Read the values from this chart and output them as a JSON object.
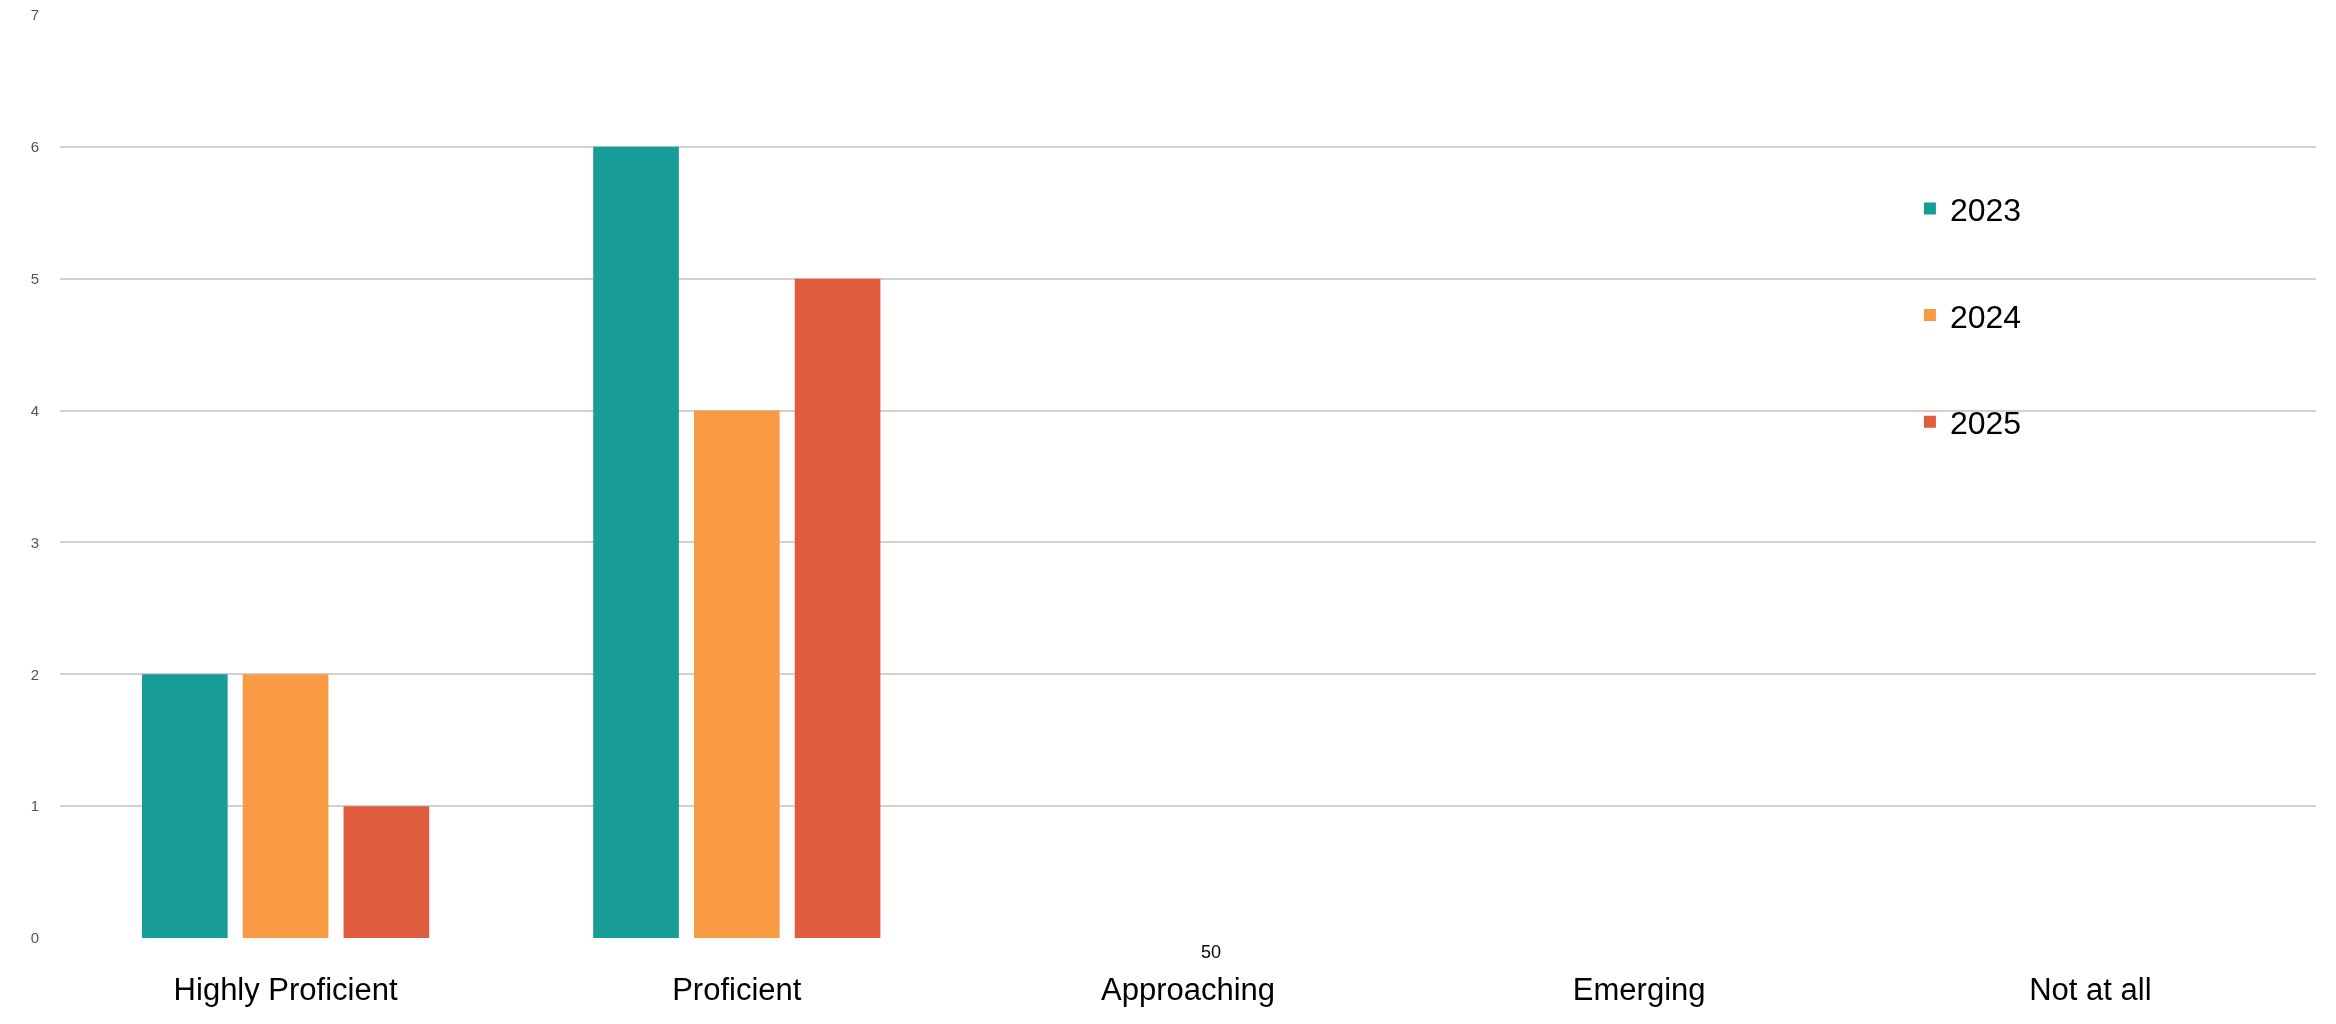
{
  "chart_data": {
    "type": "bar",
    "categories": [
      "Highly Proficient",
      "Proficient",
      "Approaching",
      "Emerging",
      "Not at all"
    ],
    "series": [
      {
        "name": "2023",
        "color": "#179c98",
        "values": [
          2,
          6,
          0,
          0,
          0
        ]
      },
      {
        "name": "2024",
        "color": "#f99b45",
        "values": [
          2,
          4,
          0,
          0,
          0
        ]
      },
      {
        "name": "2025",
        "color": "#e05c3e",
        "values": [
          1,
          5,
          0,
          0,
          0
        ]
      }
    ],
    "ylim": [
      0,
      7
    ],
    "yticks": [
      0,
      1,
      2,
      3,
      4,
      5,
      6,
      7
    ],
    "grid": "y",
    "legend": "right",
    "annotations": [
      "50"
    ]
  }
}
